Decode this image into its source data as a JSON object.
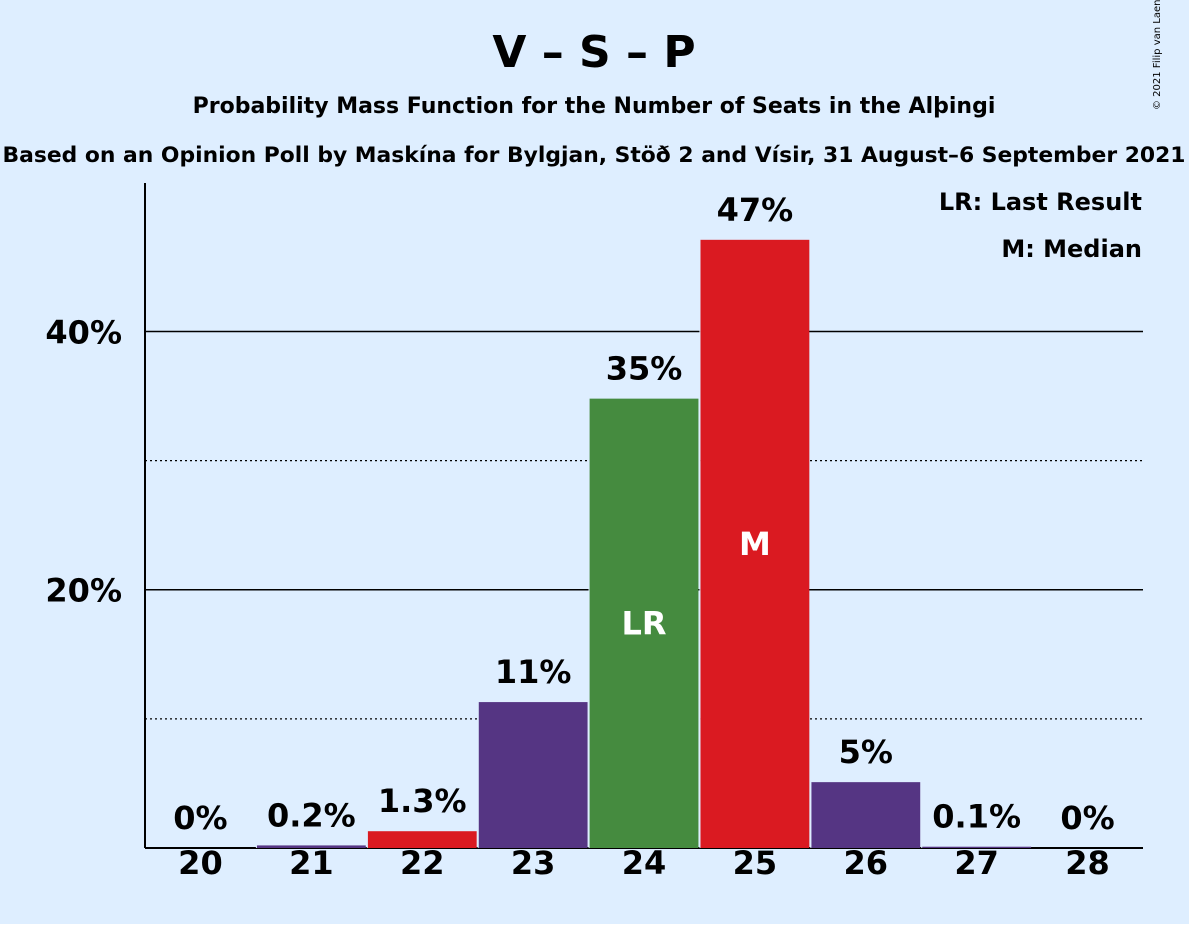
{
  "chart_data": {
    "type": "bar",
    "title": "V – S – P",
    "subtitle": "Probability Mass Function for the Number of Seats in the Alþingi",
    "subtitle2": "Based on an Opinion Poll by Maskína for Bylgjan, Stöð 2 and Vísir, 31 August–6 September 2021",
    "copyright": "© 2021 Filip van Laenen",
    "legend": {
      "lr": "LR: Last Result",
      "m": "M: Median",
      "placement": "top-right"
    },
    "categories": [
      "20",
      "21",
      "22",
      "23",
      "24",
      "25",
      "26",
      "27",
      "28"
    ],
    "values": [
      0,
      0.2,
      1.3,
      11.3,
      34.8,
      47.1,
      5.1,
      0.1,
      0
    ],
    "value_labels": [
      "0%",
      "0.2%",
      "1.3%",
      "11%",
      "35%",
      "47%",
      "5%",
      "0.1%",
      "0%"
    ],
    "bar_colors": [
      "#553583",
      "#553583",
      "#DA1A21",
      "#553583",
      "#458B3F",
      "#DA1A21",
      "#553583",
      "#553583",
      "#553583"
    ],
    "markers": {
      "24": "LR",
      "25": "M"
    },
    "y_ticks": [
      {
        "value": 20,
        "label": "20%"
      },
      {
        "value": 40,
        "label": "40%"
      }
    ],
    "minor_gridlines": [
      10,
      30
    ],
    "ylim": [
      0,
      51.5
    ],
    "xlabel": "",
    "ylabel": "",
    "colors": {
      "background": "#DEEEFF",
      "purple": "#553583",
      "red": "#DA1A21",
      "green": "#458B3F"
    }
  }
}
